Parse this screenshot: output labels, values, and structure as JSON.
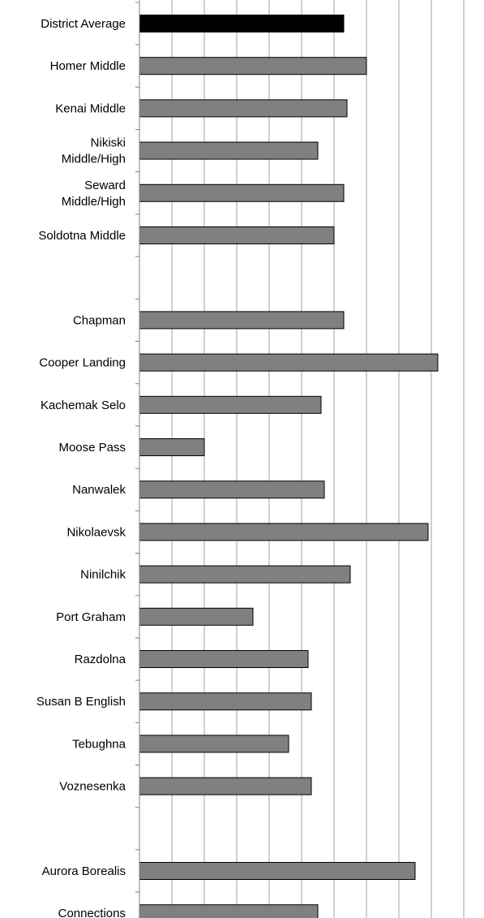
{
  "chart_data": {
    "type": "bar",
    "orientation": "horizontal",
    "categories": [
      "District Average",
      "Homer Middle",
      "Kenai Middle",
      "Nikiski\nMiddle/High",
      "Seward\nMiddle/High",
      "Soldotna Middle",
      "",
      "Chapman",
      "Cooper Landing",
      "Kachemak Selo",
      "Moose Pass",
      "Nanwalek",
      "Nikolaevsk",
      "Ninilchik",
      "Port Graham",
      "Razdolna",
      "Susan B English",
      "Tebughna",
      "Voznesenka",
      "",
      "Aurora Borealis",
      "Connections"
    ],
    "series": [
      {
        "values": [
          6.3,
          7.0,
          6.4,
          5.5,
          6.3,
          6.0,
          null,
          6.3,
          9.2,
          5.6,
          2.0,
          5.7,
          8.9,
          6.5,
          3.5,
          5.2,
          5.3,
          4.6,
          5.3,
          null,
          8.5,
          5.5
        ]
      }
    ],
    "highlight_index": 0,
    "colors": {
      "bar": "#808080",
      "highlight": "#000000",
      "grid": "#a0a0a0",
      "border": "#000000"
    },
    "xlim": [
      0,
      10
    ],
    "grid": true,
    "title": "",
    "xlabel": "",
    "ylabel": "",
    "legend": "none"
  }
}
